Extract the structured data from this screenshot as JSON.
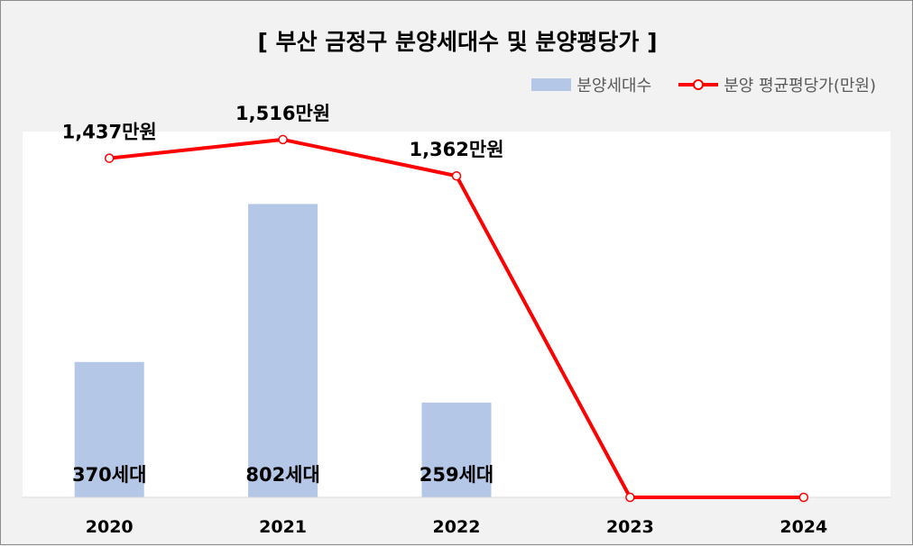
{
  "chart_data": {
    "type": "bar",
    "title": "[ 부산 금정구 분양세대수 및 분양평당가 ]",
    "categories": [
      "2020",
      "2021",
      "2022",
      "2023",
      "2024"
    ],
    "series": [
      {
        "name": "분양세대수",
        "type": "bar",
        "values": [
          370,
          802,
          259,
          0,
          0
        ],
        "labels": [
          "370세대",
          "802세대",
          "259세대",
          "",
          ""
        ],
        "color": "#b4c7e7"
      },
      {
        "name": "분양 평균평당가(만원)",
        "type": "line",
        "values": [
          1437,
          1516,
          1362,
          0,
          0
        ],
        "labels": [
          "1,437만원",
          "1,516만원",
          "1,362만원",
          "",
          ""
        ],
        "color": "#ff0000"
      }
    ],
    "bar_axis_range": [
      0,
      1000
    ],
    "line_axis_range": [
      0,
      1550
    ],
    "legend_position": "top-right",
    "grid": false
  }
}
